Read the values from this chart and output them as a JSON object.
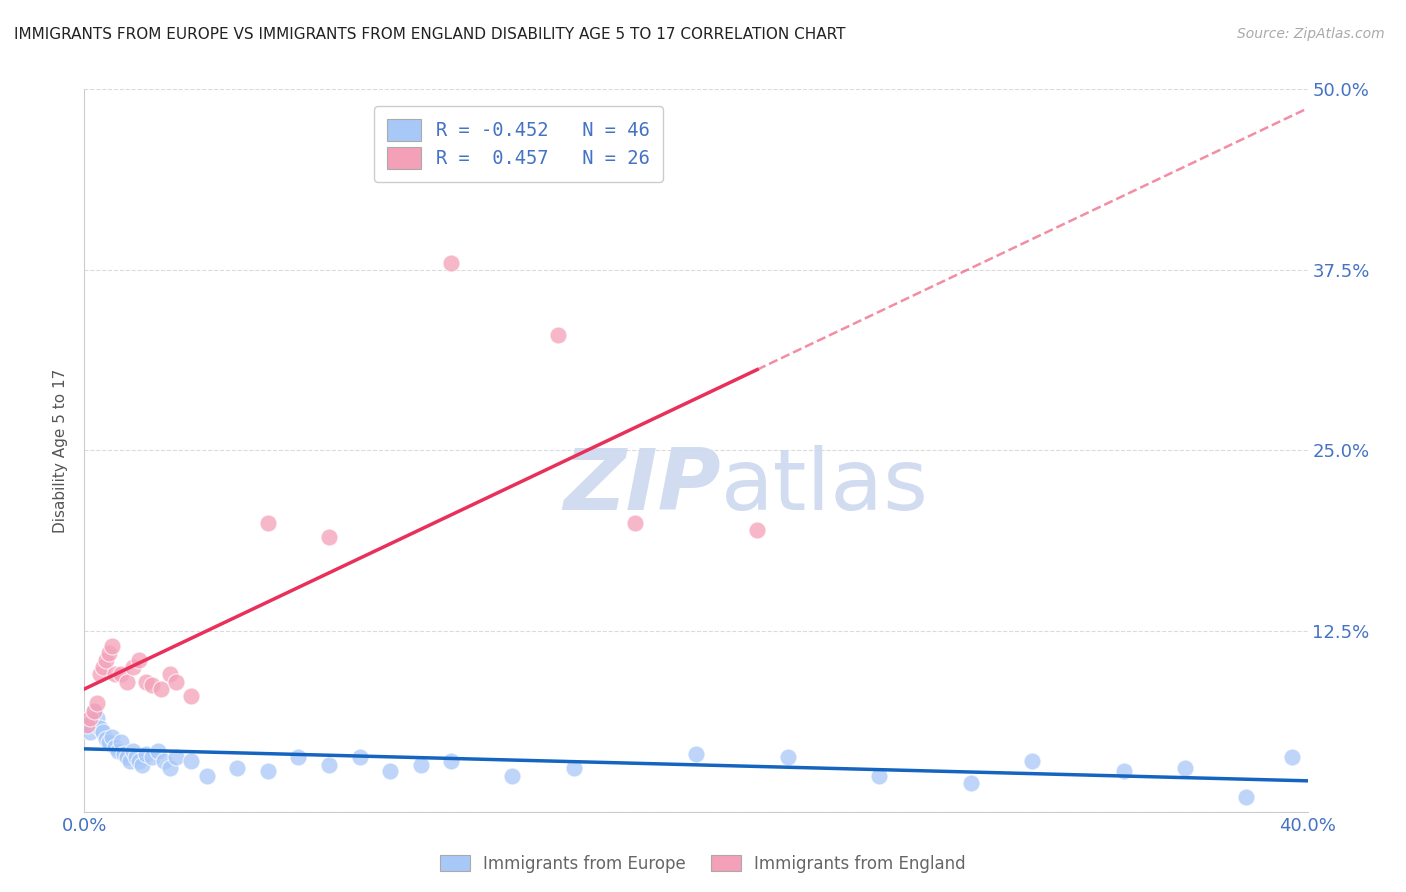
{
  "title": "IMMIGRANTS FROM EUROPE VS IMMIGRANTS FROM ENGLAND DISABILITY AGE 5 TO 17 CORRELATION CHART",
  "source": "Source: ZipAtlas.com",
  "ylabel": "Disability Age 5 to 17",
  "xlim": [
    0.0,
    0.4
  ],
  "ylim": [
    0.0,
    0.5
  ],
  "xticks": [
    0.0,
    0.05,
    0.1,
    0.15,
    0.2,
    0.25,
    0.3,
    0.35,
    0.4
  ],
  "yticks": [
    0.0,
    0.125,
    0.25,
    0.375,
    0.5
  ],
  "blue_color": "#a8c8f8",
  "pink_color": "#f4a0b8",
  "blue_line_color": "#1565c0",
  "pink_line_color": "#e8305a",
  "blue_scatter_x": [
    0.001,
    0.002,
    0.003,
    0.004,
    0.005,
    0.006,
    0.007,
    0.008,
    0.009,
    0.01,
    0.011,
    0.012,
    0.013,
    0.014,
    0.015,
    0.016,
    0.017,
    0.018,
    0.019,
    0.02,
    0.022,
    0.024,
    0.026,
    0.028,
    0.03,
    0.035,
    0.04,
    0.05,
    0.06,
    0.07,
    0.08,
    0.09,
    0.1,
    0.11,
    0.12,
    0.14,
    0.16,
    0.2,
    0.23,
    0.26,
    0.29,
    0.31,
    0.34,
    0.36,
    0.38,
    0.395
  ],
  "blue_scatter_y": [
    0.06,
    0.055,
    0.07,
    0.065,
    0.058,
    0.055,
    0.05,
    0.048,
    0.052,
    0.045,
    0.042,
    0.048,
    0.04,
    0.038,
    0.035,
    0.042,
    0.038,
    0.035,
    0.032,
    0.04,
    0.038,
    0.042,
    0.035,
    0.03,
    0.038,
    0.035,
    0.025,
    0.03,
    0.028,
    0.038,
    0.032,
    0.038,
    0.028,
    0.032,
    0.035,
    0.025,
    0.03,
    0.04,
    0.038,
    0.025,
    0.02,
    0.035,
    0.028,
    0.03,
    0.01,
    0.038
  ],
  "pink_scatter_x": [
    0.001,
    0.002,
    0.003,
    0.004,
    0.005,
    0.006,
    0.007,
    0.008,
    0.009,
    0.01,
    0.012,
    0.014,
    0.016,
    0.018,
    0.02,
    0.022,
    0.025,
    0.028,
    0.03,
    0.035,
    0.06,
    0.08,
    0.12,
    0.155,
    0.18,
    0.22
  ],
  "pink_scatter_y": [
    0.06,
    0.065,
    0.07,
    0.075,
    0.095,
    0.1,
    0.105,
    0.11,
    0.115,
    0.095,
    0.095,
    0.09,
    0.1,
    0.105,
    0.09,
    0.088,
    0.085,
    0.095,
    0.09,
    0.08,
    0.2,
    0.19,
    0.38,
    0.33,
    0.2,
    0.195
  ],
  "background_color": "#ffffff",
  "grid_color": "#cccccc",
  "tick_label_color": "#4472c4",
  "legend_text_color": "#4472c4",
  "watermark_color": "#ccd9f0"
}
